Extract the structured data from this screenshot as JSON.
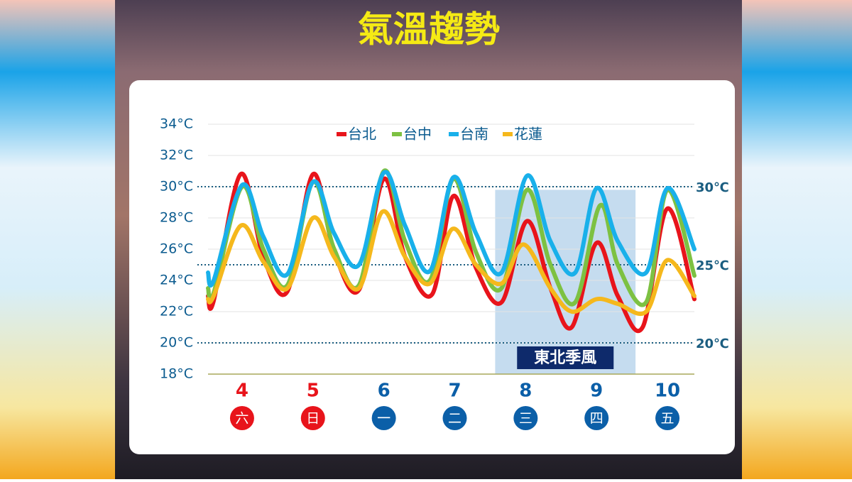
{
  "chart_data": {
    "type": "line",
    "title": "氣溫趨勢",
    "ylim": [
      18,
      34
    ],
    "yticks": [
      {
        "value": 18,
        "label": "18°C"
      },
      {
        "value": 20,
        "label": "20°C"
      },
      {
        "value": 22,
        "label": "22°C"
      },
      {
        "value": 24,
        "label": "24°C"
      },
      {
        "value": 26,
        "label": "26°C"
      },
      {
        "value": 28,
        "label": "28°C"
      },
      {
        "value": 30,
        "label": "30°C"
      },
      {
        "value": 32,
        "label": "32°C"
      },
      {
        "value": 34,
        "label": "34°C"
      }
    ],
    "xlim": [
      3.52,
      10.38
    ],
    "xticks": [
      4,
      5,
      6,
      7,
      8,
      9,
      10
    ],
    "weekdays": [
      "六",
      "日",
      "一",
      "二",
      "三",
      "四",
      "五"
    ],
    "weekday_colors": [
      "#e8141b",
      "#e8141b",
      "#0b5fa8",
      "#0b5fa8",
      "#0b5fa8",
      "#0b5fa8",
      "#0b5fa8"
    ],
    "grid": true,
    "ref_lines": [
      {
        "value": 30,
        "label": "30℃"
      },
      {
        "value": 25,
        "label": "25℃"
      },
      {
        "value": 20,
        "label": "20℃"
      }
    ],
    "shade": {
      "x0": 7.57,
      "x1": 9.55,
      "y1": 29.8,
      "label": "東北季風"
    },
    "series": [
      {
        "name": "台北",
        "color": "#e8141b",
        "x": [
          3.52,
          3.6,
          3.98,
          4.3,
          4.64,
          5.0,
          5.3,
          5.65,
          6.0,
          6.3,
          6.68,
          6.98,
          7.3,
          7.66,
          8.02,
          8.35,
          8.65,
          9.0,
          9.3,
          9.65,
          10.0,
          10.38
        ],
        "values": [
          23.0,
          22.7,
          30.8,
          25.5,
          23.3,
          30.8,
          25.8,
          23.4,
          30.5,
          25.5,
          23.1,
          29.4,
          24.8,
          22.6,
          27.8,
          23.5,
          21.0,
          26.4,
          23.0,
          21.0,
          28.6,
          22.8
        ]
      },
      {
        "name": "台中",
        "color": "#7dc142",
        "x": [
          3.52,
          3.6,
          4.0,
          4.3,
          4.64,
          5.0,
          5.3,
          5.65,
          6.0,
          6.3,
          6.65,
          6.98,
          7.3,
          7.66,
          8.02,
          8.35,
          8.7,
          9.05,
          9.3,
          9.7,
          10.0,
          10.38
        ],
        "values": [
          23.5,
          23.2,
          30.0,
          26.0,
          23.7,
          30.3,
          26.0,
          23.7,
          31.0,
          26.5,
          24.0,
          30.5,
          25.8,
          23.5,
          29.8,
          25.0,
          22.6,
          28.8,
          25.0,
          22.6,
          29.8,
          24.3
        ]
      },
      {
        "name": "台南",
        "color": "#19b0ea",
        "x": [
          3.52,
          3.6,
          4.0,
          4.3,
          4.64,
          5.0,
          5.3,
          5.65,
          6.0,
          6.3,
          6.65,
          6.98,
          7.3,
          7.66,
          8.02,
          8.35,
          8.7,
          9.0,
          9.3,
          9.7,
          10.0,
          10.38
        ],
        "values": [
          24.5,
          24.0,
          30.1,
          26.8,
          24.4,
          30.3,
          27.0,
          25.0,
          30.9,
          27.5,
          24.6,
          30.6,
          27.0,
          24.5,
          30.7,
          26.5,
          24.5,
          29.9,
          26.5,
          24.5,
          29.9,
          26.0
        ]
      },
      {
        "name": "花蓮",
        "color": "#f5b81c",
        "x": [
          3.52,
          3.6,
          3.98,
          4.3,
          4.64,
          5.0,
          5.3,
          5.65,
          5.98,
          6.3,
          6.65,
          6.97,
          7.3,
          7.66,
          7.97,
          8.35,
          8.65,
          9.0,
          9.3,
          9.7,
          10.0,
          10.38
        ],
        "values": [
          22.8,
          23.0,
          27.5,
          25.2,
          23.5,
          28.0,
          25.5,
          23.5,
          28.4,
          25.5,
          23.8,
          27.3,
          25.0,
          23.8,
          26.3,
          23.5,
          22.0,
          22.8,
          22.5,
          22.0,
          25.3,
          23.0
        ]
      }
    ]
  }
}
